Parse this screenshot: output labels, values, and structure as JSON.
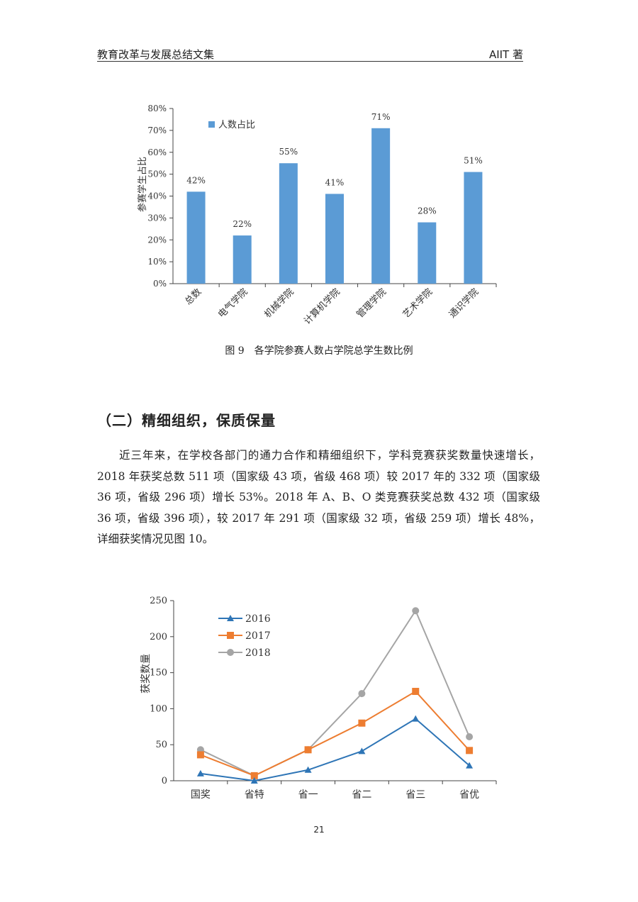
{
  "header": {
    "left": "教育改革与发展总结文集",
    "right": "AIIT 著"
  },
  "figure9": {
    "caption": "图 9　各学院参赛人数占学院总学生数比例"
  },
  "section": {
    "title": "（二）精细组织，保质保量",
    "paragraph": "近三年来，在学校各部门的通力合作和精细组织下，学科竞赛获奖数量快速增长，2018 年获奖总数 511 项（国家级 43 项，省级 468 项）较 2017 年的 332 项（国家级 36 项，省级 296 项）增长 53%。2018 年 A、B、O 类竞赛获奖总数 432 项（国家级 36 项，省级 396 项），较 2017 年 291 项（国家级 32 项，省级 259 项）增长 48%，详细获奖情况见图 10。"
  },
  "page_number": "21",
  "chart_data": [
    {
      "type": "bar",
      "categories": [
        "总数",
        "电气学院",
        "机械学院",
        "计算机学院",
        "管理学院",
        "艺术学院",
        "通识学院"
      ],
      "series": [
        {
          "name": "人数占比",
          "values": [
            42,
            22,
            55,
            41,
            71,
            28,
            51
          ],
          "color": "#5B9BD5"
        }
      ],
      "data_labels": [
        "42%",
        "22%",
        "55%",
        "41%",
        "71%",
        "28%",
        "51%"
      ],
      "ylabel": "参赛学生占比",
      "ylim": [
        0,
        80
      ],
      "yticks": [
        "0%",
        "10%",
        "20%",
        "30%",
        "40%",
        "50%",
        "60%",
        "70%",
        "80%"
      ],
      "legend": "top-left",
      "grid": false
    },
    {
      "type": "line",
      "categories": [
        "国奖",
        "省特",
        "省一",
        "省二",
        "省三",
        "省优"
      ],
      "series": [
        {
          "name": "2016",
          "values": [
            10,
            0,
            15,
            41,
            86,
            21
          ],
          "color": "#2E75B6",
          "marker": "triangle"
        },
        {
          "name": "2017",
          "values": [
            36,
            7,
            43,
            80,
            124,
            42
          ],
          "color": "#ED7D31",
          "marker": "square"
        },
        {
          "name": "2018",
          "values": [
            43,
            7,
            43,
            121,
            236,
            61
          ],
          "color": "#A5A5A5",
          "marker": "circle"
        }
      ],
      "ylabel": "获奖数量",
      "ylim": [
        0,
        250
      ],
      "yticks": [
        "0",
        "50",
        "100",
        "150",
        "200",
        "250"
      ],
      "legend": "top-left",
      "grid": false
    }
  ]
}
